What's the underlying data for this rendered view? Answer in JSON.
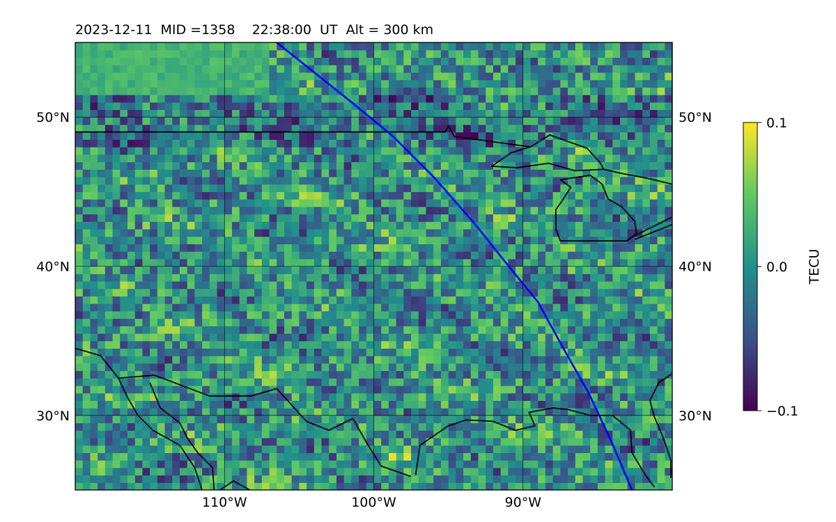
{
  "chart_data": {
    "type": "heatmap",
    "title": "2023-12-11  MID =1358    22:38:00  UT  Alt = 300 km",
    "projection": "equirectangular map",
    "xlim": [
      -120,
      -80
    ],
    "ylim": [
      25,
      55
    ],
    "x_ticks": [
      -110,
      -100,
      -90
    ],
    "x_tick_labels": [
      "110°W",
      "100°W",
      "90°W"
    ],
    "y_ticks": [
      30,
      40,
      50
    ],
    "y_tick_labels": [
      "30°N",
      "40°N",
      "50°N"
    ],
    "grid": true,
    "colormap": "viridis",
    "colormap_colors": [
      "#440154",
      "#3b528b",
      "#21918c",
      "#5ec962",
      "#fde725"
    ],
    "color_range": [
      -0.1,
      0.1
    ],
    "colorbar": {
      "label": "TECU",
      "position": "right",
      "ticks": [
        0.1,
        0.0,
        -0.1
      ],
      "tick_labels": [
        "0.1",
        "0.0",
        "−0.1"
      ]
    },
    "grid_resolution_deg": 0.5,
    "coastline_color": "#000000",
    "track": {
      "color": "#0000ff",
      "points": [
        [
          -106.5,
          55
        ],
        [
          -104,
          53
        ],
        [
          -101.5,
          51
        ],
        [
          -98.7,
          48.7
        ],
        [
          -96,
          46
        ],
        [
          -93.2,
          42.8
        ],
        [
          -91.2,
          40.3
        ],
        [
          -89,
          37.6
        ],
        [
          -87.3,
          34.5
        ],
        [
          -85.6,
          31.5
        ],
        [
          -84.1,
          28.3
        ],
        [
          -82.7,
          25
        ]
      ]
    },
    "coastlines": [
      [
        [
          -120,
          49
        ],
        [
          -95.2,
          49
        ],
        [
          -95,
          49.4
        ],
        [
          -94.6,
          48.7
        ],
        [
          -91,
          48.2
        ],
        [
          -89.5,
          48
        ]
      ],
      [
        [
          -89.5,
          48
        ],
        [
          -88.2,
          48.8
        ],
        [
          -85.7,
          47.9
        ],
        [
          -84.8,
          46.9
        ],
        [
          -84.6,
          46.5
        ],
        [
          -86.5,
          46.4
        ],
        [
          -88.3,
          46.9
        ],
        [
          -90.4,
          46.6
        ],
        [
          -92.1,
          46.7
        ],
        [
          -90.8,
          47.6
        ],
        [
          -89.5,
          48
        ]
      ],
      [
        [
          -84.6,
          46.5
        ],
        [
          -83.3,
          46.2
        ],
        [
          -81.7,
          45.9
        ],
        [
          -80,
          45.5
        ]
      ],
      [
        [
          -87.5,
          45.8
        ],
        [
          -85.5,
          46.1
        ],
        [
          -84.7,
          45.5
        ],
        [
          -84.3,
          44.5
        ],
        [
          -83.4,
          44
        ],
        [
          -82.5,
          43
        ],
        [
          -82.4,
          42.2
        ],
        [
          -83,
          41.7
        ],
        [
          -84.5,
          41.7
        ],
        [
          -86.5,
          41.7
        ],
        [
          -87.5,
          41.7
        ],
        [
          -87.8,
          42.5
        ],
        [
          -87.8,
          43.8
        ],
        [
          -87.3,
          44.5
        ],
        [
          -86.8,
          45.3
        ],
        [
          -87.5,
          45.8
        ]
      ],
      [
        [
          -82.5,
          41.8
        ],
        [
          -80,
          42.8
        ]
      ],
      [
        [
          -83,
          41.8
        ],
        [
          -80,
          43.3
        ]
      ],
      [
        [
          -80,
          47
        ],
        [
          -80,
          55
        ]
      ],
      [
        [
          -117.1,
          32.5
        ],
        [
          -114.7,
          32.7
        ],
        [
          -111,
          31.3
        ],
        [
          -108.2,
          31.3
        ],
        [
          -106.5,
          31.8
        ],
        [
          -104.5,
          29.6
        ],
        [
          -103,
          29
        ],
        [
          -101.4,
          29.8
        ],
        [
          -100.5,
          28.2
        ],
        [
          -99.5,
          26.6
        ],
        [
          -97.5,
          25.9
        ]
      ],
      [
        [
          -97.2,
          26
        ],
        [
          -96.9,
          28
        ],
        [
          -95,
          29.3
        ],
        [
          -93.8,
          29.7
        ],
        [
          -92,
          29.6
        ],
        [
          -90.5,
          29
        ],
        [
          -89.2,
          29.3
        ],
        [
          -89.6,
          30.2
        ],
        [
          -88,
          30.5
        ],
        [
          -87,
          30.4
        ],
        [
          -85.5,
          30
        ],
        [
          -84,
          30
        ],
        [
          -82.8,
          29
        ],
        [
          -82.7,
          27.5
        ],
        [
          -81.8,
          26
        ],
        [
          -81.2,
          25.2
        ]
      ],
      [
        [
          -120,
          34.5
        ],
        [
          -118.3,
          34
        ],
        [
          -117.1,
          32.5
        ],
        [
          -116.5,
          31.2
        ],
        [
          -115.8,
          30
        ],
        [
          -114.8,
          29
        ],
        [
          -113,
          28
        ],
        [
          -112,
          26.5
        ],
        [
          -111.5,
          25
        ]
      ],
      [
        [
          -115,
          32.2
        ],
        [
          -114.3,
          30.5
        ],
        [
          -113,
          29.5
        ],
        [
          -112.5,
          28.5
        ],
        [
          -111.8,
          27.5
        ],
        [
          -110.8,
          26.5
        ],
        [
          -110.7,
          25
        ]
      ],
      [
        [
          -110.3,
          25
        ],
        [
          -109.4,
          25.6
        ],
        [
          -108.3,
          25
        ]
      ],
      [
        [
          -80.1,
          25.8
        ],
        [
          -80.1,
          27
        ],
        [
          -80.6,
          28.5
        ],
        [
          -81.2,
          29.9
        ],
        [
          -81.5,
          31
        ],
        [
          -80.9,
          32.2
        ],
        [
          -80,
          32.8
        ]
      ]
    ]
  }
}
